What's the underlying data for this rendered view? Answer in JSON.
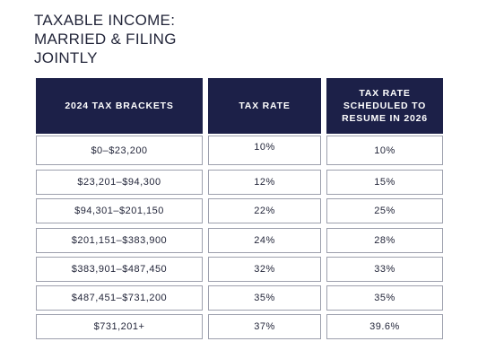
{
  "chart_data": {
    "type": "table",
    "title_lines": [
      "TAXABLE INCOME:",
      "MARRIED & FILING",
      "JOINTLY"
    ],
    "columns": [
      "2024 TAX BRACKETS",
      "TAX RATE",
      "TAX RATE SCHEDULED TO RESUME IN 2026"
    ],
    "header_lines": [
      [
        "2024 TAX BRACKETS"
      ],
      [
        "TAX RATE"
      ],
      [
        "TAX RATE",
        "SCHEDULED TO",
        "RESUME IN 2026"
      ]
    ],
    "rows": [
      [
        "$0–$23,200",
        "10%",
        "10%"
      ],
      [
        "$23,201–$94,300",
        "12%",
        "15%"
      ],
      [
        "$94,301–$201,150",
        "22%",
        "25%"
      ],
      [
        "$201,151–$383,900",
        "24%",
        "28%"
      ],
      [
        "$383,901–$487,450",
        "32%",
        "33%"
      ],
      [
        "$487,451–$731,200",
        "35%",
        "35%"
      ],
      [
        "$731,201+",
        "37%",
        "39.6%"
      ]
    ]
  }
}
